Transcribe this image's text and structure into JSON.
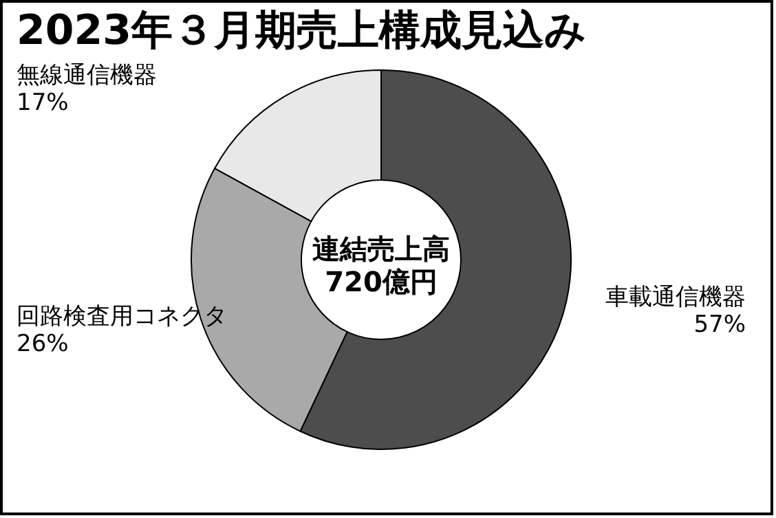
{
  "chart_data": {
    "type": "donut",
    "title": "2023年３月期売上構成見込み",
    "categories": [
      "車載通信機器",
      "回路検査用コネクタ",
      "無線通信機器"
    ],
    "values": [
      57,
      26,
      17
    ],
    "value_labels": [
      "57%",
      "26%",
      "17%"
    ],
    "colors": [
      "#4d4d4d",
      "#a9a9a9",
      "#e8e8e8"
    ],
    "annotations": [
      "連結売上高",
      "720億円"
    ]
  }
}
